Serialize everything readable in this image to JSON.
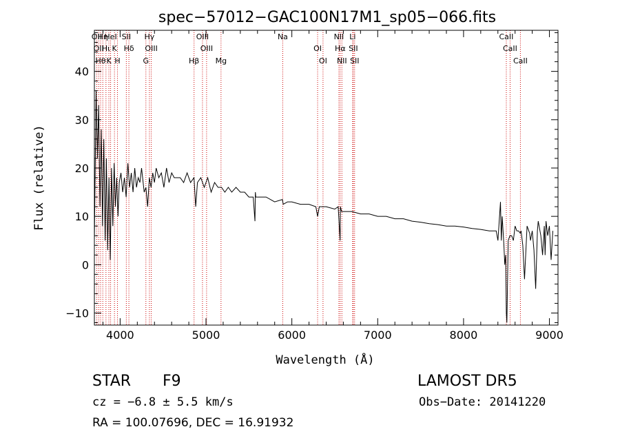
{
  "chart_data": {
    "type": "line",
    "title": "spec−57012−GAC100N17M1_sp05−066.fits",
    "xlabel": "Wavelength (Å)",
    "ylabel": "Flux (relative)",
    "xlim": [
      3700,
      9100
    ],
    "ylim": [
      -12.5,
      48.5
    ],
    "xticks": [
      4000,
      5000,
      6000,
      7000,
      8000,
      9000
    ],
    "yticks": [
      -10,
      0,
      10,
      20,
      30,
      40
    ],
    "xtick_labels": [
      "4000",
      "5000",
      "6000",
      "7000",
      "8000",
      "9000"
    ],
    "ytick_labels": [
      "−10",
      "0",
      "10",
      "20",
      "30",
      "40"
    ],
    "series": [
      {
        "x": [
          3700,
          3720,
          3735,
          3750,
          3765,
          3780,
          3795,
          3810,
          3825,
          3840,
          3855,
          3870,
          3885,
          3900,
          3915,
          3930,
          3945,
          3960,
          3975,
          3990,
          4010,
          4030,
          4050,
          4070,
          4090,
          4110,
          4130,
          4150,
          4170,
          4190,
          4210,
          4230,
          4250,
          4280,
          4300,
          4320,
          4340,
          4360,
          4380,
          4400,
          4420,
          4450,
          4480,
          4510,
          4540,
          4570,
          4600,
          4630,
          4660,
          4700,
          4740,
          4780,
          4820,
          4860,
          4880,
          4900,
          4940,
          4980,
          5020,
          5060,
          5100,
          5140,
          5180,
          5220,
          5260,
          5300,
          5350,
          5400,
          5450,
          5500,
          5550,
          5570,
          5575,
          5580,
          5620,
          5700,
          5800,
          5890,
          5900,
          5950,
          6000,
          6100,
          6200,
          6280,
          6300,
          6320,
          6400,
          6500,
          6540,
          6562,
          6565,
          6580,
          6600,
          6700,
          6800,
          6900,
          7000,
          7100,
          7200,
          7300,
          7400,
          7500,
          7600,
          7700,
          7800,
          7900,
          8000,
          8100,
          8200,
          8300,
          8380,
          8400,
          8430,
          8440,
          8450,
          8470,
          8480,
          8490,
          8498,
          8505,
          8520,
          8540,
          8545,
          8560,
          8580,
          8600,
          8620,
          8640,
          8660,
          8670,
          8690,
          8710,
          8740,
          8760,
          8770,
          8780,
          8800,
          8820,
          8840,
          8860,
          8870,
          8900,
          8920,
          8940,
          8950,
          8960,
          8980,
          9000,
          9020,
          9040
        ],
        "y": [
          5,
          36,
          22,
          33,
          12,
          28,
          8,
          26,
          5,
          22,
          3,
          18,
          1,
          20,
          8,
          21,
          12,
          18,
          10,
          17,
          19,
          15,
          18,
          14,
          21,
          16,
          19,
          15,
          20,
          16,
          18,
          17,
          20,
          15,
          16,
          12,
          18,
          16,
          19,
          17,
          20,
          18,
          19,
          16,
          20,
          17,
          19,
          18,
          18,
          18,
          17,
          19,
          17,
          18,
          12,
          17,
          18,
          16,
          18,
          15,
          17,
          16,
          16,
          15,
          16,
          15,
          16,
          15,
          15,
          14,
          14,
          9,
          15,
          14,
          14,
          14,
          13,
          13.5,
          12.5,
          13,
          13,
          12.5,
          12.5,
          12,
          10,
          12,
          12,
          11.5,
          12,
          5,
          12,
          11,
          11,
          11,
          10.5,
          10.5,
          10,
          10,
          9.5,
          9.5,
          9,
          8.8,
          8.5,
          8.3,
          8,
          8,
          7.8,
          7.5,
          7.3,
          7,
          7,
          5,
          13,
          5,
          10,
          4,
          0,
          2,
          -10,
          -12,
          5,
          6,
          6,
          6,
          5,
          8,
          7,
          7,
          6.5,
          7,
          4,
          -3,
          8,
          7,
          6.5,
          5,
          7,
          3,
          -5,
          7,
          9,
          6,
          2,
          8,
          2,
          9,
          6,
          8,
          1,
          7
        ]
      }
    ],
    "lines": [
      {
        "x": 3727,
        "labels": [
          "OII"
        ]
      },
      {
        "x": 3750,
        "labels": [
          "OII"
        ]
      },
      {
        "x": 3772,
        "labels": [
          "Hθ"
        ]
      },
      {
        "x": 3798,
        "labels": [
          "Hη"
        ]
      },
      {
        "x": 3835,
        "labels": [
          "Hι"
        ]
      },
      {
        "x": 3869,
        "labels": [
          "K"
        ]
      },
      {
        "x": 3889,
        "labels": [
          "HeI"
        ]
      },
      {
        "x": 3934,
        "labels": [
          "K"
        ]
      },
      {
        "x": 3969,
        "labels": [
          "H"
        ]
      },
      {
        "x": 4072,
        "labels": [
          "SII"
        ]
      },
      {
        "x": 4102,
        "labels": [
          "Hδ"
        ]
      },
      {
        "x": 4300,
        "labels": [
          "G"
        ]
      },
      {
        "x": 4341,
        "labels": [
          "Hγ"
        ]
      },
      {
        "x": 4363,
        "labels": [
          "OIII"
        ]
      },
      {
        "x": 4861,
        "labels": [
          "Hβ"
        ]
      },
      {
        "x": 4959,
        "labels": [
          "OIII"
        ]
      },
      {
        "x": 5007,
        "labels": [
          "OIII"
        ]
      },
      {
        "x": 5175,
        "labels": [
          "Mg"
        ]
      },
      {
        "x": 5894,
        "labels": [
          "Na"
        ]
      },
      {
        "x": 6300,
        "labels": [
          "OI"
        ]
      },
      {
        "x": 6363,
        "labels": [
          "OI"
        ]
      },
      {
        "x": 6548,
        "labels": [
          "NII"
        ]
      },
      {
        "x": 6563,
        "labels": [
          "Hα"
        ]
      },
      {
        "x": 6583,
        "labels": [
          "NII"
        ]
      },
      {
        "x": 6708,
        "labels": [
          "Li"
        ]
      },
      {
        "x": 6716,
        "labels": [
          "SII"
        ]
      },
      {
        "x": 6731,
        "labels": [
          "SII"
        ]
      },
      {
        "x": 8498,
        "labels": [
          "CaII"
        ]
      },
      {
        "x": 8542,
        "labels": [
          "CaII"
        ]
      },
      {
        "x": 8662,
        "labels": [
          "CaII"
        ]
      }
    ],
    "line_color": "#cc0000",
    "spectrum_color": "#000000"
  },
  "info": {
    "object_class": "STAR",
    "subclass": "F9",
    "survey": "LAMOST DR5",
    "velocity": "cz = −6.8 ± 5.5 km/s",
    "obs_date": "Obs−Date: 20141220",
    "coords": "RA = 100.07696, DEC =  16.91932"
  }
}
